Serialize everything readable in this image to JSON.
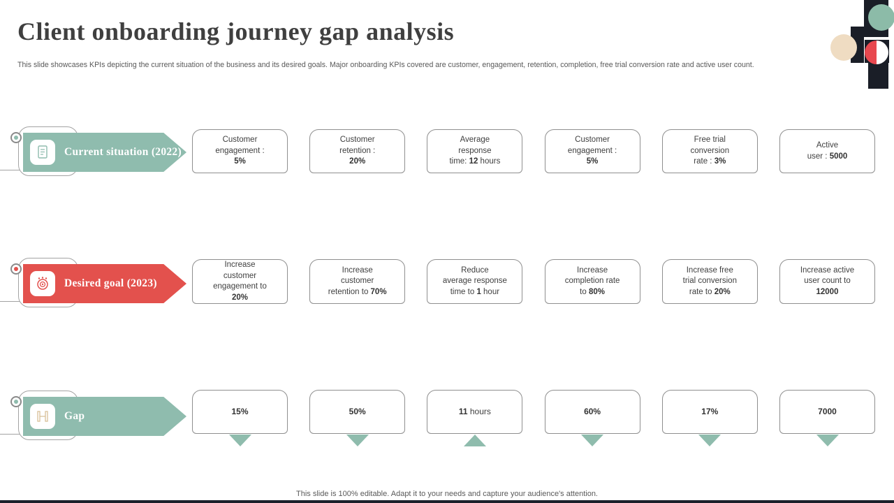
{
  "slide": {
    "title": "Client onboarding journey gap analysis",
    "subtitle": "This slide showcases KPIs depicting the current situation of the business and its desired goals. Major onboarding KPIs covered are customer, engagement, retention, completion, free trial conversion rate and active user count.",
    "footer": "This slide is 100% editable. Adapt it to your needs and capture your audience's attention."
  },
  "colors": {
    "accent_teal": "#8fbcae",
    "accent_red": "#e3514d",
    "decoration_dark": "#1a1e27",
    "decoration_beige": "#efdcc2",
    "decoration_red": "#e8484f",
    "gap_triangle": "#8fbcad"
  },
  "rows": [
    {
      "id": "current-situation",
      "label": "Current situation (2022)",
      "color": "#8fbcae",
      "icon": "document-icon",
      "icon_color": "#8fbcae",
      "cards": [
        {
          "lines": [
            {
              "s0": "Customer"
            },
            {
              "s0": "engagement :"
            },
            {
              "s1": "5%"
            }
          ]
        },
        {
          "lines": [
            {
              "s0": "Customer"
            },
            {
              "s0": "retention :"
            },
            {
              "s1": "20%"
            }
          ]
        },
        {
          "lines": [
            {
              "s0": "Average"
            },
            {
              "s0": "response"
            },
            {
              "s0": "time: ",
              "s1": "12",
              "s2": " hours"
            }
          ]
        },
        {
          "lines": [
            {
              "s0": "Customer"
            },
            {
              "s0": "engagement :"
            },
            {
              "s1": "5%"
            }
          ]
        },
        {
          "lines": [
            {
              "s0": "Free trial"
            },
            {
              "s0": "conversion"
            },
            {
              "s0": "rate : ",
              "s1": "3%"
            }
          ]
        },
        {
          "lines": [
            {
              "s0": "Active"
            },
            {
              "s0": "user : ",
              "s1": "5000"
            }
          ]
        }
      ]
    },
    {
      "id": "desired-goal",
      "label": "Desired goal (2023)",
      "color": "#e3514d",
      "icon": "goal-icon",
      "icon_color": "#e3514d",
      "cards": [
        {
          "lines": [
            {
              "s0": "Increase"
            },
            {
              "s0": "customer"
            },
            {
              "s0": "engagement to"
            },
            {
              "s1": "20%"
            }
          ]
        },
        {
          "lines": [
            {
              "s0": "Increase"
            },
            {
              "s0": "customer"
            },
            {
              "s0": "retention to ",
              "s1": "70%"
            }
          ]
        },
        {
          "lines": [
            {
              "s0": "Reduce"
            },
            {
              "s0": "average response"
            },
            {
              "s0": "time to ",
              "s1": "1",
              "s2": " hour"
            }
          ]
        },
        {
          "lines": [
            {
              "s0": "Increase"
            },
            {
              "s0": "completion rate"
            },
            {
              "s0": "to ",
              "s1": "80%"
            }
          ]
        },
        {
          "lines": [
            {
              "s0": "Increase free"
            },
            {
              "s0": "trial conversion"
            },
            {
              "s0": "rate to ",
              "s1": "20%"
            }
          ]
        },
        {
          "lines": [
            {
              "s0": "Increase active"
            },
            {
              "s0": "user count to"
            },
            {
              "s1": "12000"
            }
          ]
        }
      ]
    },
    {
      "id": "gap",
      "label": "Gap",
      "color": "#8fbcae",
      "icon": "gap-icon",
      "icon_color": "#d8c097",
      "cards": [
        {
          "lines": [
            {
              "s1": "15%"
            }
          ],
          "arrow": "down"
        },
        {
          "lines": [
            {
              "s1": "50%"
            }
          ],
          "arrow": "down"
        },
        {
          "lines": [
            {
              "s1": "11",
              "s2": " hours"
            }
          ],
          "arrow": "up"
        },
        {
          "lines": [
            {
              "s1": "60%"
            }
          ],
          "arrow": "down"
        },
        {
          "lines": [
            {
              "s1": "17%"
            }
          ],
          "arrow": "down"
        },
        {
          "lines": [
            {
              "s1": "7000"
            }
          ],
          "arrow": "down"
        }
      ]
    }
  ]
}
